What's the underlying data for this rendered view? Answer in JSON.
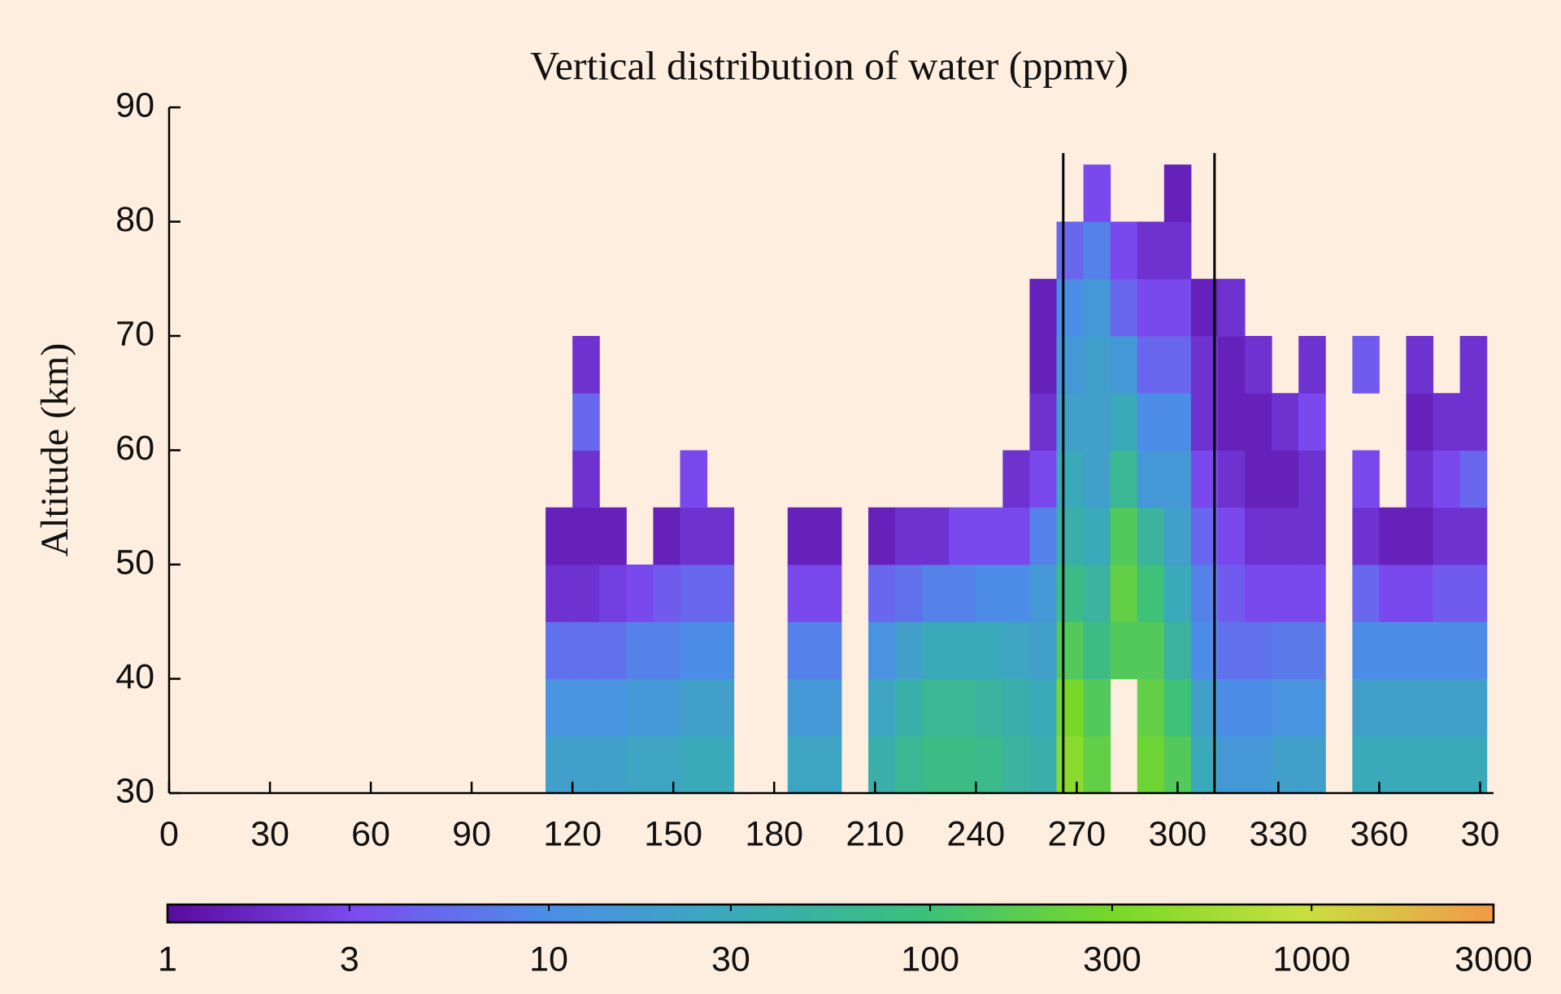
{
  "chart_data": {
    "type": "heatmap",
    "title": "Vertical distribution of water (ppmv)",
    "y_label": "Altitude (km)",
    "x": [
      116,
      124,
      132,
      140,
      148,
      156,
      164,
      172,
      180,
      188,
      196,
      204,
      212,
      220,
      228,
      236,
      244,
      252,
      260,
      268,
      276,
      284,
      292,
      300,
      308,
      316,
      324,
      332,
      340,
      348,
      356,
      364,
      372,
      380,
      388
    ],
    "y": [
      32.5,
      37.5,
      42.5,
      47.5,
      52.5,
      57.5,
      62.5,
      67.5,
      72.5,
      77.5,
      82.5
    ],
    "values": [
      [
        20,
        12,
        6,
        2,
        1.5,
        null,
        null,
        null,
        null,
        null,
        null
      ],
      [
        20,
        12,
        6,
        2,
        1.5,
        2,
        5,
        2,
        null,
        null,
        null
      ],
      [
        20,
        12,
        6,
        2.5,
        1.5,
        null,
        null,
        null,
        null,
        null,
        null
      ],
      [
        25,
        15,
        8,
        3,
        null,
        null,
        null,
        null,
        null,
        null,
        null
      ],
      [
        25,
        15,
        8,
        4,
        1.5,
        null,
        null,
        null,
        null,
        null,
        null
      ],
      [
        30,
        20,
        10,
        5,
        2,
        3,
        null,
        null,
        null,
        null,
        null
      ],
      [
        30,
        20,
        10,
        5,
        2,
        null,
        null,
        null,
        null,
        null,
        null
      ],
      [
        null,
        null,
        null,
        null,
        null,
        null,
        null,
        null,
        null,
        null,
        null
      ],
      [
        null,
        null,
        null,
        null,
        null,
        null,
        null,
        null,
        null,
        null,
        null
      ],
      [
        25,
        15,
        8,
        3,
        1.5,
        null,
        null,
        null,
        null,
        null,
        null
      ],
      [
        25,
        15,
        8,
        3,
        1.5,
        null,
        null,
        null,
        null,
        null,
        null
      ],
      [
        null,
        null,
        null,
        null,
        null,
        null,
        null,
        null,
        null,
        null,
        null
      ],
      [
        40,
        25,
        12,
        5,
        1.5,
        null,
        null,
        null,
        null,
        null,
        null
      ],
      [
        60,
        40,
        20,
        6,
        2,
        null,
        null,
        null,
        null,
        null,
        null
      ],
      [
        80,
        60,
        30,
        8,
        2,
        null,
        null,
        null,
        null,
        null,
        null
      ],
      [
        80,
        60,
        30,
        8,
        3,
        null,
        null,
        null,
        null,
        null,
        null
      ],
      [
        70,
        50,
        30,
        10,
        3,
        null,
        null,
        null,
        null,
        null,
        null
      ],
      [
        50,
        40,
        25,
        10,
        3,
        2,
        null,
        null,
        null,
        null,
        null
      ],
      [
        40,
        30,
        20,
        15,
        8,
        3,
        2,
        1.5,
        1.5,
        null,
        null
      ],
      [
        400,
        300,
        150,
        80,
        40,
        30,
        20,
        15,
        10,
        5,
        null
      ],
      [
        200,
        150,
        80,
        50,
        30,
        20,
        20,
        20,
        15,
        8,
        3
      ],
      [
        null,
        null,
        150,
        200,
        150,
        60,
        30,
        15,
        5,
        3,
        null
      ],
      [
        250,
        200,
        150,
        100,
        50,
        15,
        10,
        5,
        3,
        2,
        null
      ],
      [
        150,
        100,
        50,
        30,
        20,
        15,
        10,
        5,
        3,
        2,
        1.5
      ],
      [
        30,
        20,
        10,
        8,
        5,
        3,
        2,
        2,
        1.5,
        null,
        null
      ],
      [
        15,
        10,
        6,
        4,
        3,
        2,
        1.5,
        1.5,
        2,
        null,
        null
      ],
      [
        15,
        10,
        6,
        3,
        2,
        1.5,
        1.5,
        2,
        null,
        null,
        null
      ],
      [
        20,
        12,
        7,
        3,
        2,
        1.5,
        2,
        null,
        null,
        null,
        null
      ],
      [
        20,
        12,
        7,
        3,
        2,
        2,
        3,
        2,
        null,
        null,
        null
      ],
      [
        null,
        null,
        null,
        null,
        null,
        null,
        null,
        null,
        null,
        null,
        null
      ],
      [
        30,
        20,
        10,
        5,
        2,
        3,
        null,
        4,
        null,
        null,
        null
      ],
      [
        30,
        20,
        10,
        3,
        1.5,
        null,
        null,
        null,
        null,
        null,
        null
      ],
      [
        30,
        20,
        10,
        3,
        1.5,
        2,
        1.5,
        2,
        null,
        null,
        null
      ],
      [
        30,
        20,
        10,
        4,
        2,
        3,
        2,
        null,
        null,
        null,
        null
      ],
      [
        30,
        20,
        10,
        4,
        2,
        5,
        2,
        2,
        null,
        null,
        null
      ]
    ],
    "xlim": [
      0,
      394
    ],
    "ylim": [
      30,
      90
    ],
    "xticks": [
      0,
      30,
      60,
      90,
      120,
      150,
      180,
      210,
      240,
      270,
      300,
      330,
      360,
      {
        "value": 390,
        "label": "30"
      }
    ],
    "yticks": [
      30,
      40,
      50,
      60,
      70,
      80,
      90
    ],
    "vertical_lines": [
      266,
      311
    ],
    "colorbar": {
      "scale": "log",
      "lim": [
        1,
        3000
      ],
      "ticks": [
        1,
        3,
        10,
        30,
        100,
        300,
        1000,
        3000
      ],
      "colormap": [
        "#5a0a9e",
        "#7b4cf0",
        "#4c8ee8",
        "#3aaab8",
        "#3cc07a",
        "#78d828",
        "#c8e040",
        "#f29a4a"
      ]
    }
  }
}
